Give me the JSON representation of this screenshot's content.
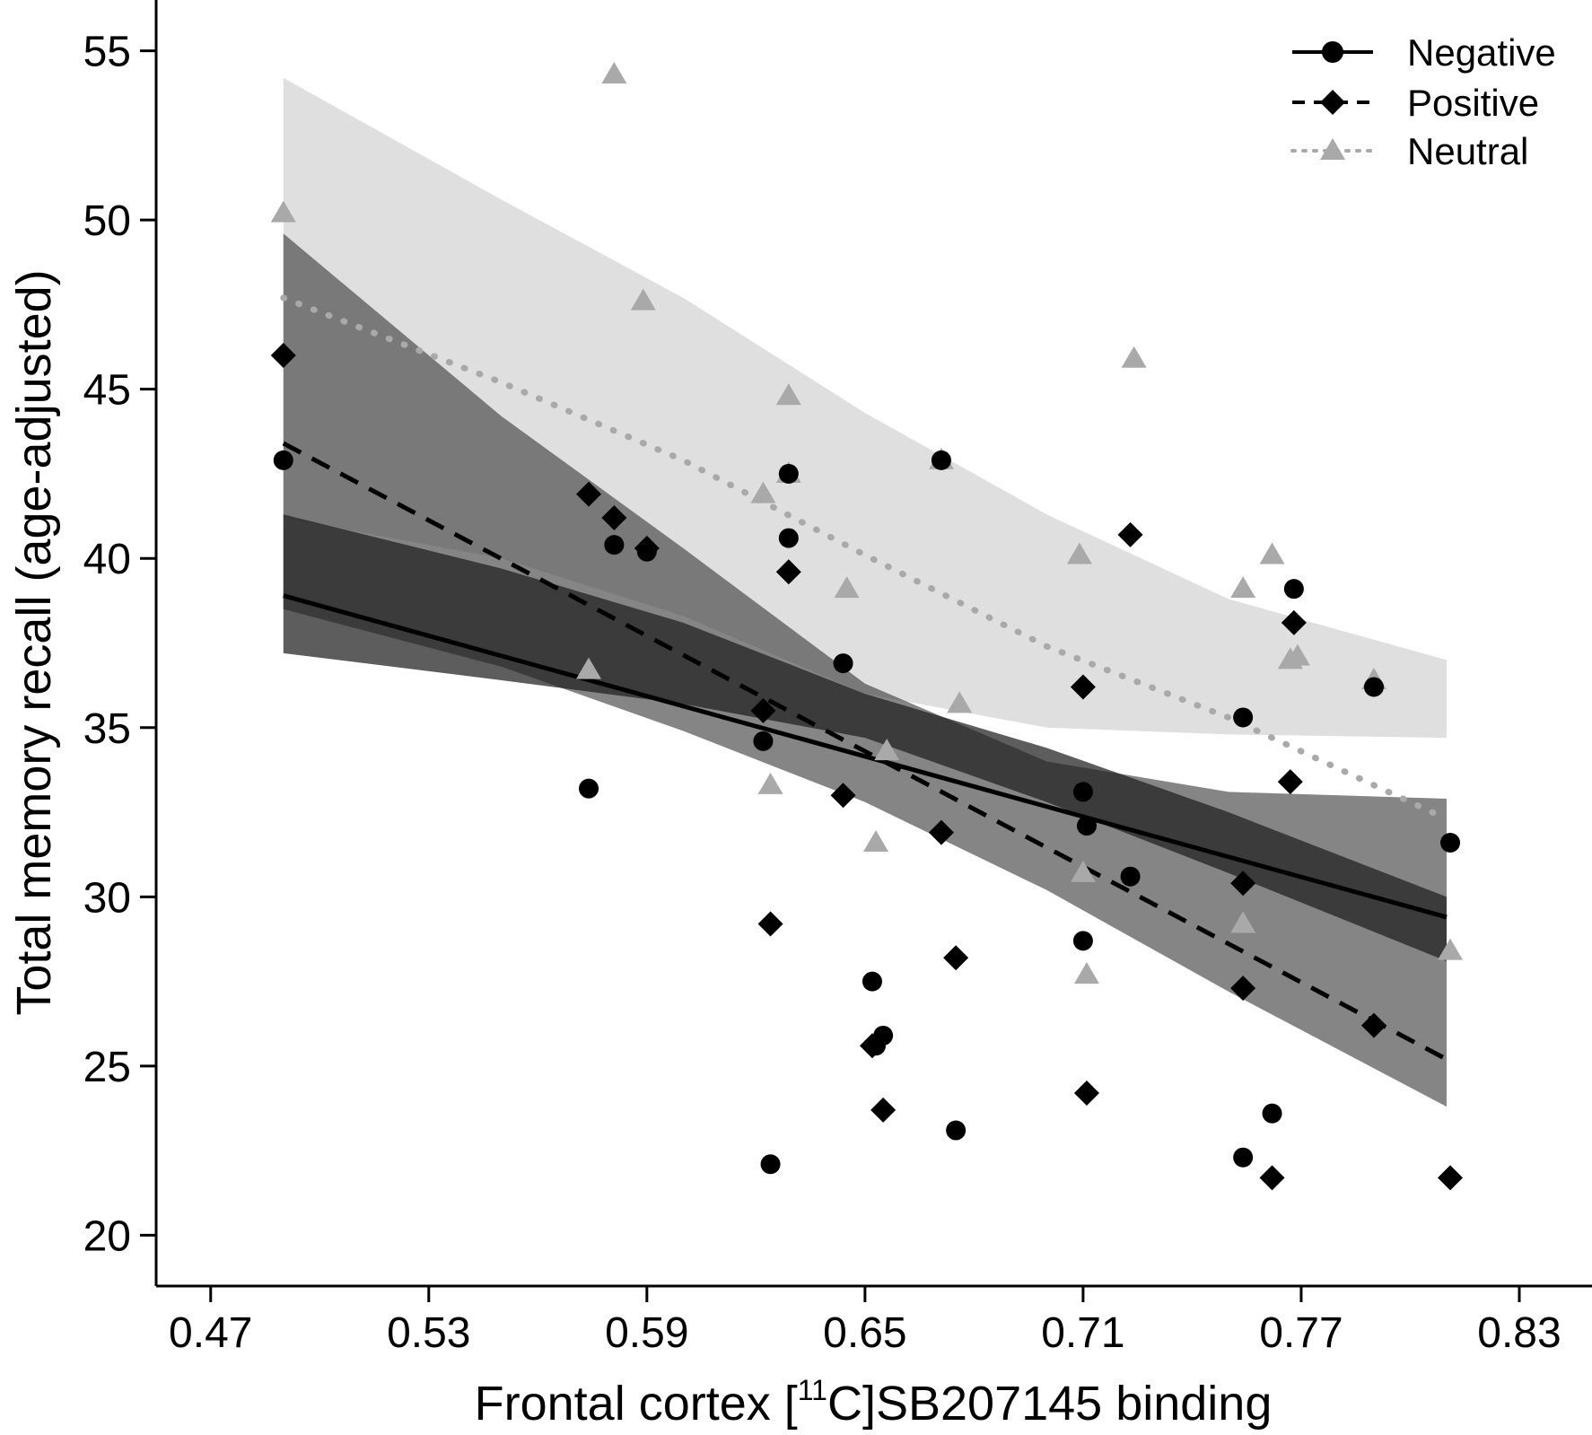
{
  "chart_data": {
    "type": "scatter",
    "xlabel_parts": [
      "Frontal cortex [",
      "11",
      "C]SB207145 binding"
    ],
    "ylabel": "Total memory recall (age-adjusted)",
    "xlim": [
      0.455,
      0.85
    ],
    "ylim": [
      18.5,
      56.5
    ],
    "xticks": [
      "0.47",
      "0.53",
      "0.59",
      "0.65",
      "0.71",
      "0.77",
      "0.83"
    ],
    "yticks": [
      "20",
      "25",
      "30",
      "35",
      "40",
      "45",
      "50",
      "55"
    ],
    "legend_position": "top-right",
    "series": [
      {
        "name": "Negative",
        "marker": "circle",
        "line": "solid",
        "color": "#000000",
        "fit": [
          [
            0.49,
            38.9
          ],
          [
            0.81,
            29.4
          ]
        ],
        "band": {
          "x": [
            0.49,
            0.55,
            0.6,
            0.65,
            0.7,
            0.75,
            0.81
          ],
          "lower": [
            37.2,
            36.4,
            35.7,
            34.7,
            32.8,
            30.7,
            28.1
          ],
          "upper": [
            41.3,
            39.7,
            38.1,
            36.0,
            34.4,
            32.5,
            30.0
          ]
        },
        "points": [
          [
            0.49,
            42.9
          ],
          [
            0.574,
            33.2
          ],
          [
            0.581,
            40.4
          ],
          [
            0.59,
            40.2
          ],
          [
            0.622,
            34.6
          ],
          [
            0.624,
            22.1
          ],
          [
            0.629,
            42.5
          ],
          [
            0.629,
            40.6
          ],
          [
            0.644,
            36.9
          ],
          [
            0.652,
            27.5
          ],
          [
            0.653,
            25.6
          ],
          [
            0.655,
            25.9
          ],
          [
            0.671,
            42.9
          ],
          [
            0.675,
            23.1
          ],
          [
            0.71,
            33.1
          ],
          [
            0.711,
            32.1
          ],
          [
            0.71,
            28.7
          ],
          [
            0.723,
            30.6
          ],
          [
            0.754,
            35.3
          ],
          [
            0.754,
            22.3
          ],
          [
            0.762,
            23.6
          ],
          [
            0.768,
            39.1
          ],
          [
            0.79,
            36.2
          ],
          [
            0.811,
            31.6
          ]
        ]
      },
      {
        "name": "Positive",
        "marker": "diamond",
        "line": "dashed",
        "color": "#000000",
        "fit": [
          [
            0.49,
            43.4
          ],
          [
            0.81,
            25.2
          ]
        ],
        "band": {
          "x": [
            0.49,
            0.55,
            0.6,
            0.65,
            0.7,
            0.75,
            0.81
          ],
          "lower": [
            38.5,
            36.8,
            34.9,
            32.8,
            30.2,
            27.2,
            23.8
          ],
          "upper": [
            49.6,
            44.2,
            40.3,
            36.3,
            34.0,
            33.1,
            32.9
          ]
        },
        "points": [
          [
            0.49,
            46.0
          ],
          [
            0.574,
            41.9
          ],
          [
            0.581,
            41.2
          ],
          [
            0.59,
            40.3
          ],
          [
            0.622,
            35.5
          ],
          [
            0.624,
            29.2
          ],
          [
            0.629,
            39.6
          ],
          [
            0.644,
            33.0
          ],
          [
            0.652,
            25.6
          ],
          [
            0.655,
            23.7
          ],
          [
            0.671,
            31.9
          ],
          [
            0.675,
            28.2
          ],
          [
            0.71,
            36.2
          ],
          [
            0.711,
            24.2
          ],
          [
            0.723,
            40.7
          ],
          [
            0.754,
            30.4
          ],
          [
            0.754,
            27.3
          ],
          [
            0.762,
            21.7
          ],
          [
            0.767,
            33.4
          ],
          [
            0.768,
            38.1
          ],
          [
            0.79,
            26.2
          ],
          [
            0.811,
            21.7
          ]
        ]
      },
      {
        "name": "Neutral",
        "marker": "triangle",
        "line": "dotted",
        "color": "#a9a9a9",
        "fit": [
          [
            0.49,
            47.7
          ],
          [
            0.55,
            45.2
          ],
          [
            0.6,
            42.9
          ],
          [
            0.65,
            40.1
          ],
          [
            0.7,
            37.4
          ],
          [
            0.75,
            35.3
          ],
          [
            0.81,
            32.3
          ]
        ],
        "band": {
          "x": [
            0.49,
            0.55,
            0.6,
            0.65,
            0.7,
            0.75,
            0.81
          ],
          "lower": [
            41.2,
            40.0,
            38.3,
            36.0,
            35.0,
            34.8,
            34.7
          ],
          "upper": [
            54.2,
            50.6,
            47.7,
            44.3,
            41.3,
            38.8,
            37.0
          ]
        },
        "points": [
          [
            0.49,
            50.2
          ],
          [
            0.574,
            36.7
          ],
          [
            0.581,
            54.3
          ],
          [
            0.589,
            47.6
          ],
          [
            0.622,
            41.9
          ],
          [
            0.624,
            33.3
          ],
          [
            0.629,
            44.8
          ],
          [
            0.629,
            42.5
          ],
          [
            0.645,
            39.1
          ],
          [
            0.653,
            31.6
          ],
          [
            0.656,
            34.3
          ],
          [
            0.671,
            42.9
          ],
          [
            0.676,
            35.7
          ],
          [
            0.709,
            40.1
          ],
          [
            0.71,
            30.7
          ],
          [
            0.711,
            27.7
          ],
          [
            0.724,
            45.9
          ],
          [
            0.754,
            39.1
          ],
          [
            0.754,
            29.2
          ],
          [
            0.762,
            40.1
          ],
          [
            0.767,
            37.0
          ],
          [
            0.769,
            37.1
          ],
          [
            0.79,
            36.4
          ],
          [
            0.811,
            28.4
          ]
        ]
      }
    ]
  }
}
